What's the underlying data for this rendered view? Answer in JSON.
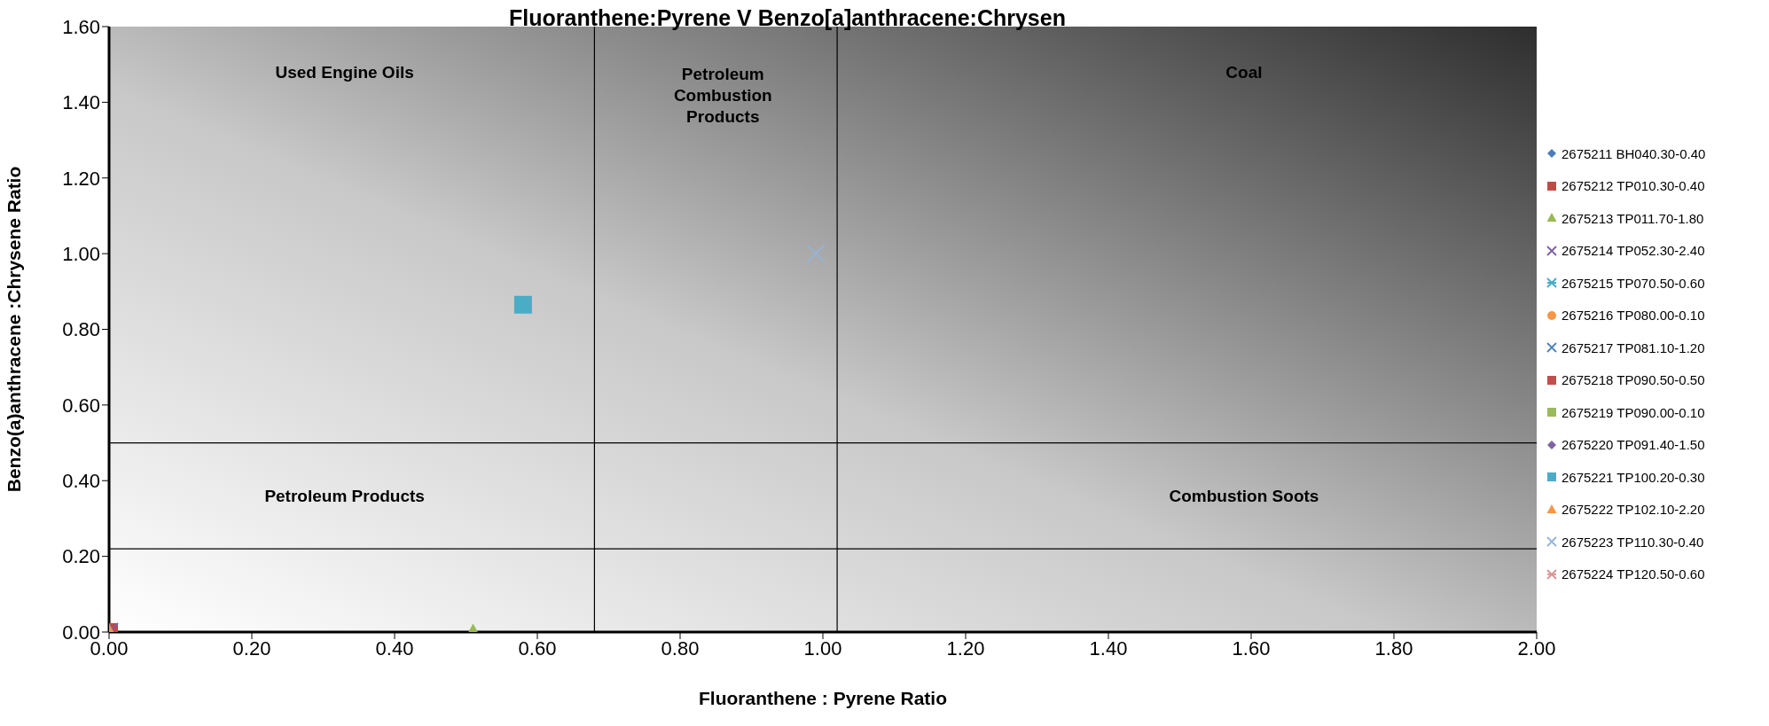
{
  "chart_data": {
    "type": "scatter",
    "title": "Fluoranthene:Pyrene V Benzo[a]anthracene:Chrysen",
    "xlabel": "Fluoranthene : Pyrene Ratio",
    "ylabel": "Benzo(a)anthracene :Chrysene Ratio",
    "xlim": [
      0,
      2
    ],
    "ylim": [
      0,
      1.6
    ],
    "xticks": [
      {
        "value": 0,
        "label": "0.00"
      },
      {
        "value": 0.2,
        "label": "0.20"
      },
      {
        "value": 0.4,
        "label": "0.40"
      },
      {
        "value": 0.6,
        "label": "0.60"
      },
      {
        "value": 0.8,
        "label": "0.80"
      },
      {
        "value": 1,
        "label": "1.00"
      },
      {
        "value": 1.2,
        "label": "1.20"
      },
      {
        "value": 1.4,
        "label": "1.40"
      },
      {
        "value": 1.6,
        "label": "1.60"
      },
      {
        "value": 1.8,
        "label": "1.80"
      },
      {
        "value": 2,
        "label": "2.00"
      }
    ],
    "yticks": [
      {
        "value": 0,
        "label": "0.00"
      },
      {
        "value": 0.2,
        "label": "0.20"
      },
      {
        "value": 0.4,
        "label": "0.40"
      },
      {
        "value": 0.6,
        "label": "0.60"
      },
      {
        "value": 0.8,
        "label": "0.80"
      },
      {
        "value": 1,
        "label": "1.00"
      },
      {
        "value": 1.2,
        "label": "1.20"
      },
      {
        "value": 1.4,
        "label": "1.40"
      },
      {
        "value": 1.6,
        "label": "1.60"
      }
    ],
    "grid": false,
    "legend": "right",
    "series": [
      {
        "name": "2675211 BH040.30-0.40",
        "color": "#4a7ebb",
        "marker": "diamond",
        "x": [
          null
        ],
        "values": [
          null
        ]
      },
      {
        "name": "2675212 TP010.30-0.40",
        "color": "#be4b48",
        "marker": "square",
        "x": [
          0
        ],
        "values": [
          0
        ]
      },
      {
        "name": "2675213 TP011.70-1.80",
        "color": "#98b954",
        "marker": "triangle",
        "x": [
          0.51
        ],
        "values": [
          0
        ]
      },
      {
        "name": "2675214 TP052.30-2.40",
        "color": "#7d60a0",
        "marker": "cross",
        "x": [
          0
        ],
        "values": [
          0
        ]
      },
      {
        "name": "2675215 TP070.50-0.60",
        "color": "#46aac5",
        "marker": "star",
        "x": [
          null
        ],
        "values": [
          null
        ]
      },
      {
        "name": "2675216 TP080.00-0.10",
        "color": "#f79646",
        "marker": "circle",
        "x": [
          null
        ],
        "values": [
          null
        ]
      },
      {
        "name": "2675217 TP081.10-1.20",
        "color": "#4f81bd",
        "marker": "cross",
        "x": [
          null
        ],
        "values": [
          null
        ]
      },
      {
        "name": "2675218 TP090.50-0.50",
        "color": "#c0504d",
        "marker": "square",
        "x": [
          null
        ],
        "values": [
          null
        ]
      },
      {
        "name": "2675219 TP090.00-0.10",
        "color": "#9bbb59",
        "marker": "square",
        "x": [
          null
        ],
        "values": [
          null
        ]
      },
      {
        "name": "2675220 TP091.40-1.50",
        "color": "#8064a2",
        "marker": "diamond",
        "x": [
          null
        ],
        "values": [
          null
        ]
      },
      {
        "name": "2675221 TP100.20-0.30",
        "color": "#4bacc6",
        "marker": "square",
        "x": [
          0.58
        ],
        "values": [
          0.865
        ]
      },
      {
        "name": "2675222 TP102.10-2.20",
        "color": "#f79646",
        "marker": "triangle",
        "x": [
          0
        ],
        "values": [
          0
        ]
      },
      {
        "name": "2675223 TP110.30-0.40",
        "color": "#95b3d7",
        "marker": "cross",
        "x": [
          0.99
        ],
        "values": [
          1.0
        ]
      },
      {
        "name": "2675224 TP120.50-0.60",
        "color": "#d99694",
        "marker": "star",
        "x": [
          null
        ],
        "values": [
          null
        ]
      }
    ],
    "ref_lines": [
      {
        "axis": "x",
        "value": 0.68,
        "color": "#000000"
      },
      {
        "axis": "x",
        "value": 1.02,
        "color": "#000000"
      },
      {
        "axis": "y",
        "value": 0.5,
        "color": "#000000"
      },
      {
        "axis": "y",
        "value": 0.22,
        "color": "#000000"
      }
    ],
    "annotations": [
      "Used Engine Oils",
      "Petroleum\nCombustion\nProducts",
      "Coal",
      "Petroleum Products",
      "Combustion Soots"
    ]
  }
}
